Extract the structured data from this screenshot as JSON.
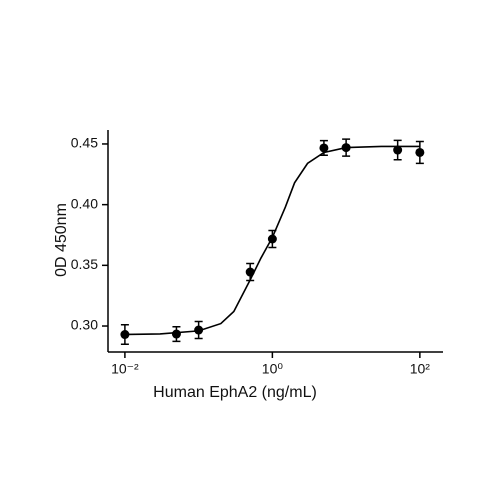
{
  "chart_data": {
    "type": "scatter",
    "xlabel": "Human EphA2 (ng/mL)",
    "ylabel": "0D 450nm",
    "xscale": "log",
    "color": "#000000",
    "x": [
      0.01,
      0.05,
      0.1,
      0.5,
      1,
      5,
      10,
      50,
      100
    ],
    "values": [
      0.293,
      0.2934,
      0.2967,
      0.3445,
      0.3717,
      0.4467,
      0.447,
      0.445,
      0.443
    ],
    "errors": [
      0.008,
      0.006,
      0.007,
      0.007,
      0.007,
      0.006,
      0.007,
      0.008,
      0.009
    ],
    "curve": {
      "x": [
        0.01,
        0.03,
        0.1,
        0.2,
        0.3,
        0.5,
        0.7,
        1,
        1.5,
        2,
        3,
        5,
        10,
        30,
        100
      ],
      "values": [
        0.293,
        0.2935,
        0.296,
        0.302,
        0.312,
        0.338,
        0.356,
        0.373,
        0.398,
        0.418,
        0.434,
        0.443,
        0.447,
        0.448,
        0.448
      ]
    },
    "xlim": [
      0.0059,
      206
    ],
    "ylim": [
      0.2786,
      0.4615
    ],
    "xticks": [
      {
        "value": 0.01,
        "label": "10⁻²"
      },
      {
        "value": 1,
        "label": "10⁰"
      },
      {
        "value": 100,
        "label": "10²"
      }
    ],
    "yticks": [
      {
        "value": 0.3,
        "label": "0.30"
      },
      0.35,
      {
        "value": 0.4,
        "label": "0.40"
      },
      0.45
    ]
  }
}
